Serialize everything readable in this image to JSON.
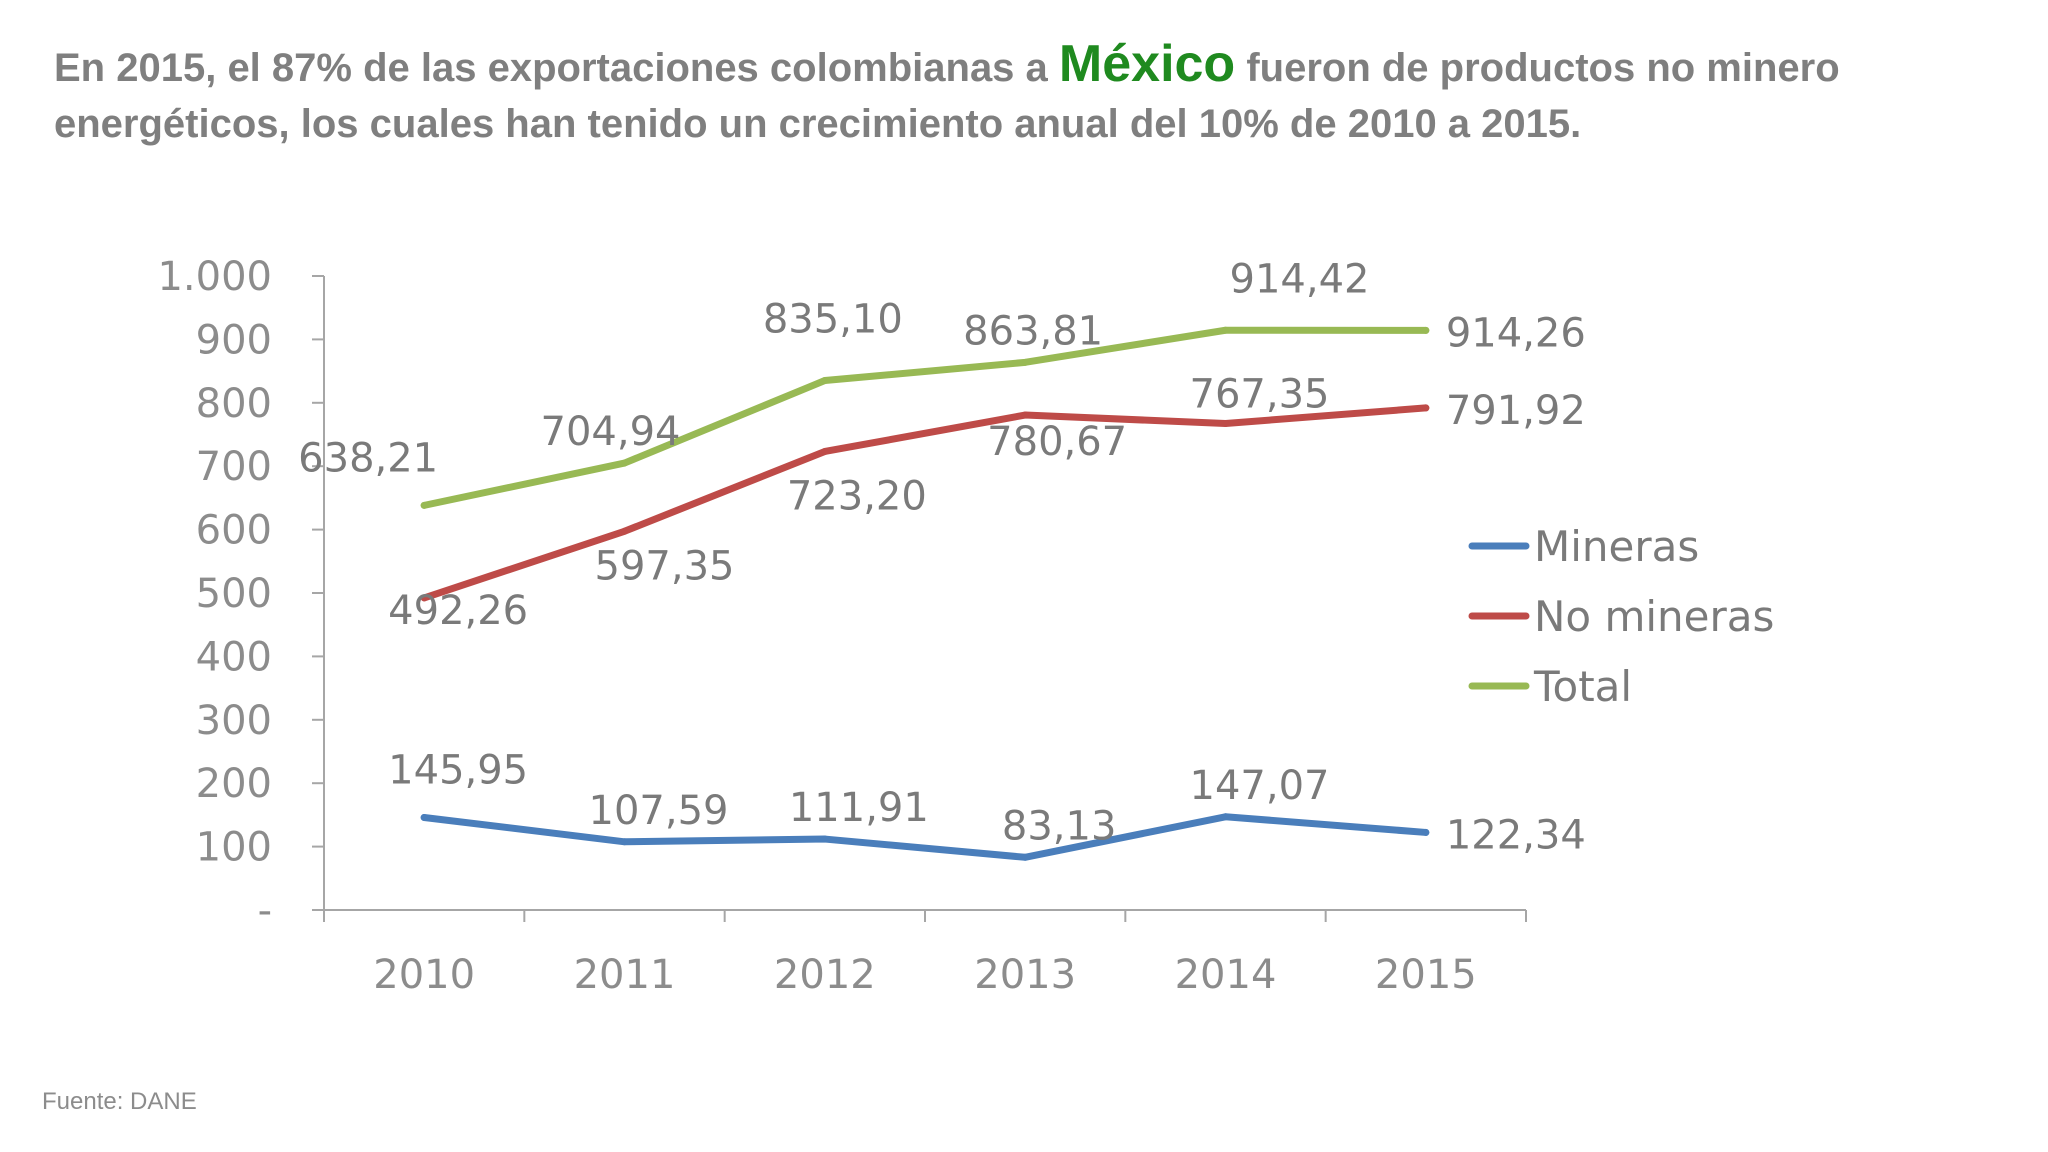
{
  "headline": {
    "before": "En 2015, el 87% de las exportaciones colombianas a ",
    "highlight": "México",
    "after": " fueron de productos no minero energéticos, los cuales han tenido un crecimiento anual del 10% de 2010 a 2015."
  },
  "colors": {
    "mineras": "#4a7ebb",
    "no_mineras": "#be4b48",
    "total": "#98b954",
    "highlight": "#1f8a1f",
    "axis": "#a6a6a6"
  },
  "chart_data": {
    "type": "line",
    "categories": [
      "2010",
      "2011",
      "2012",
      "2013",
      "2014",
      "2015"
    ],
    "series": [
      {
        "name": "Mineras",
        "values": [
          145.95,
          107.59,
          111.91,
          83.13,
          147.07,
          122.34
        ],
        "labels": [
          "145,95",
          "107,59",
          "111,91",
          "83,13",
          "147,07",
          "122,34"
        ]
      },
      {
        "name": "No mineras",
        "values": [
          492.26,
          597.35,
          723.2,
          780.67,
          767.35,
          791.92
        ],
        "labels": [
          "492,26",
          "597,35",
          "723,20",
          "780,67",
          "767,35",
          "791,92"
        ]
      },
      {
        "name": "Total",
        "values": [
          638.21,
          704.94,
          835.1,
          863.81,
          914.42,
          914.26
        ],
        "labels": [
          "638,21",
          "704,94",
          "835,10",
          "863,81",
          "914,42",
          "914,26"
        ]
      }
    ],
    "y_tick_labels": [
      "-",
      "100",
      "200",
      "300",
      "400",
      "500",
      "600",
      "700",
      "800",
      "900",
      "1.000"
    ],
    "ylim": [
      0,
      1000
    ],
    "grid": false,
    "legend_position": "right"
  },
  "source": "Fuente: DANE"
}
